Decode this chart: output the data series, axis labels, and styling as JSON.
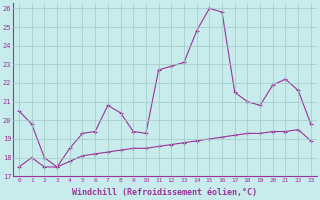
{
  "xlabel": "Windchill (Refroidissement éolien,°C)",
  "bg_color": "#c8ecec",
  "grid_color": "#a0c8c8",
  "line_color": "#993399",
  "xlim": [
    -0.5,
    23.5
  ],
  "ylim": [
    17,
    26.3
  ],
  "yticks": [
    17,
    18,
    19,
    20,
    21,
    22,
    23,
    24,
    25,
    26
  ],
  "xticks": [
    0,
    1,
    2,
    3,
    4,
    5,
    6,
    7,
    8,
    9,
    10,
    11,
    12,
    13,
    14,
    15,
    16,
    17,
    18,
    19,
    20,
    21,
    22,
    23
  ],
  "series1_x": [
    0,
    1,
    2,
    3,
    4,
    5,
    6,
    7,
    8,
    9,
    10,
    11,
    12,
    13,
    14,
    15,
    16,
    17,
    18,
    19,
    20,
    21,
    22,
    23
  ],
  "series1_y": [
    20.5,
    19.8,
    18.0,
    17.5,
    18.5,
    19.3,
    19.4,
    20.8,
    20.4,
    19.4,
    19.3,
    22.7,
    22.9,
    23.1,
    24.8,
    26.0,
    25.8,
    21.5,
    21.0,
    20.8,
    21.9,
    22.2,
    21.6,
    19.8
  ],
  "series2_x": [
    0,
    1,
    2,
    3,
    4,
    5,
    6,
    7,
    8,
    9,
    10,
    11,
    12,
    13,
    14,
    15,
    16,
    17,
    18,
    19,
    20,
    21,
    22,
    23
  ],
  "series2_y": [
    17.5,
    18.0,
    17.5,
    17.5,
    17.8,
    18.1,
    18.2,
    18.3,
    18.4,
    18.5,
    18.5,
    18.6,
    18.7,
    18.8,
    18.9,
    19.0,
    19.1,
    19.2,
    19.3,
    19.3,
    19.4,
    19.4,
    19.5,
    18.9
  ]
}
